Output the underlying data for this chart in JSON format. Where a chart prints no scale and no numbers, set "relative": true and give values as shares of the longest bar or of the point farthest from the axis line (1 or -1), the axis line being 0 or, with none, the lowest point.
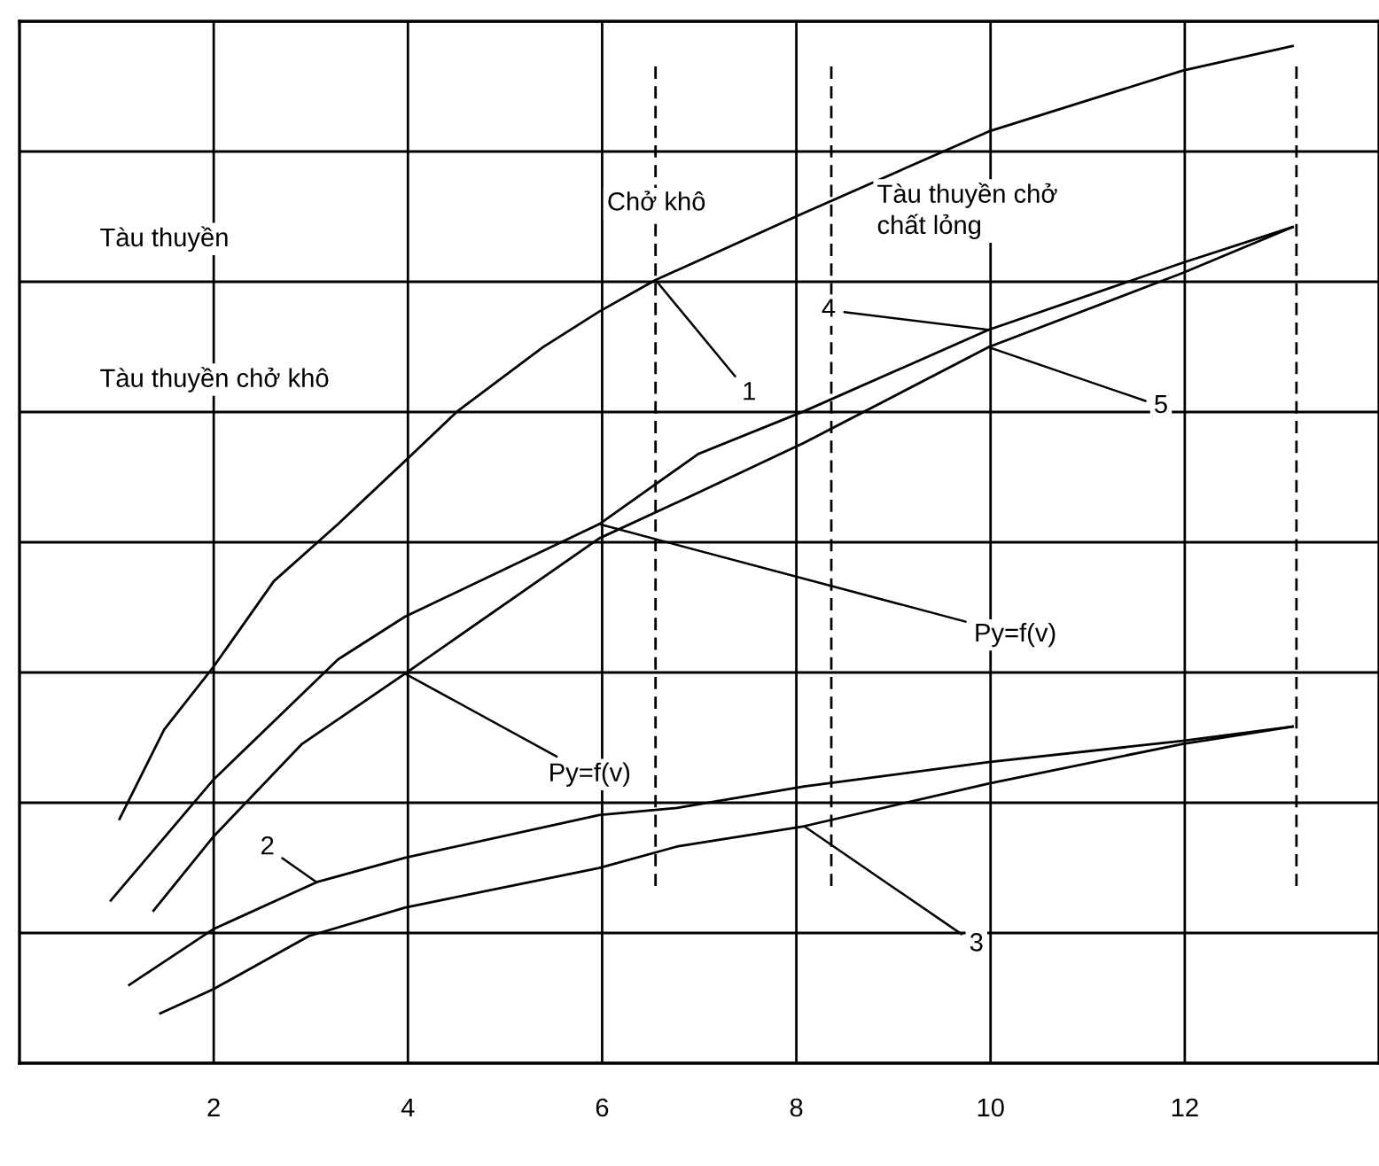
{
  "chart_data": {
    "type": "line",
    "relative": true,
    "xlim": [
      0,
      14
    ],
    "xticks": [
      2,
      4,
      6,
      8,
      10,
      12
    ],
    "grid": true,
    "series": [
      {
        "color": "#000000",
        "x": [
          1.03,
          1.49,
          2,
          2.62,
          3.28,
          3.97,
          4.51,
          5.39,
          5.97,
          6.55,
          8.08,
          9.98,
          11.98,
          13.11
        ],
        "values": [
          0.24,
          0.328,
          0.39,
          0.474,
          0.53,
          0.592,
          0.641,
          0.704,
          0.739,
          0.77,
          0.836,
          0.916,
          0.976,
          1.0
        ]
      },
      {
        "color": "#000000",
        "x": [
          1.13,
          2,
          3.06,
          3.97,
          5.97,
          6.77,
          8.08,
          9.98,
          11.98,
          13.11
        ],
        "values": [
          0.077,
          0.132,
          0.178,
          0.202,
          0.244,
          0.251,
          0.272,
          0.296,
          0.317,
          0.331
        ]
      },
      {
        "color": "#000000",
        "x": [
          1.45,
          2,
          2.98,
          3.97,
          5.97,
          6.77,
          8.08,
          9.98,
          11.98,
          13.11
        ],
        "values": [
          0.049,
          0.073,
          0.125,
          0.153,
          0.192,
          0.213,
          0.233,
          0.275,
          0.314,
          0.331
        ]
      },
      {
        "color": "#000000",
        "x": [
          0.94,
          2,
          3.28,
          3.97,
          5.97,
          6.99,
          8.08,
          9.98,
          11.98,
          13.11
        ],
        "values": [
          0.16,
          0.279,
          0.397,
          0.439,
          0.53,
          0.599,
          0.641,
          0.721,
          0.787,
          0.822
        ]
      },
      {
        "color": "#000000",
        "x": [
          1.38,
          2,
          2.91,
          3.97,
          5.97,
          6.99,
          8.08,
          9.98,
          11.98,
          13.11
        ],
        "values": [
          0.15,
          0.223,
          0.314,
          0.383,
          0.516,
          0.561,
          0.61,
          0.704,
          0.777,
          0.822
        ]
      }
    ],
    "ref_lines": [
      {
        "axis": "x",
        "value": 6.55,
        "label": "Chở khô",
        "color": "#000000",
        "line_style": "dashed"
      },
      {
        "axis": "x",
        "value": 8.36,
        "label": "Tàu thuyền chở\nchất lỏng",
        "color": "#000000",
        "line_style": "dashed"
      },
      {
        "axis": "x",
        "value": 13.15,
        "color": "#000000",
        "line_style": "dashed"
      }
    ],
    "annotations": [
      "Tàu thuyền",
      "Tàu thuyền chở khô",
      {
        "text": "1",
        "x": 6.55,
        "y": 0.77
      },
      {
        "text": "2",
        "x": 3.06,
        "y": 0.178
      },
      {
        "text": "3",
        "x": 8.08,
        "y": 0.233
      },
      {
        "text": "4",
        "x": 9.98,
        "y": 0.721
      },
      {
        "text": "5",
        "x": 9.98,
        "y": 0.704
      },
      {
        "text": "Py=f(v)",
        "x": 3.97,
        "y": 0.383
      },
      {
        "text": "Py=f(v)",
        "x": 5.97,
        "y": 0.53
      }
    ]
  }
}
